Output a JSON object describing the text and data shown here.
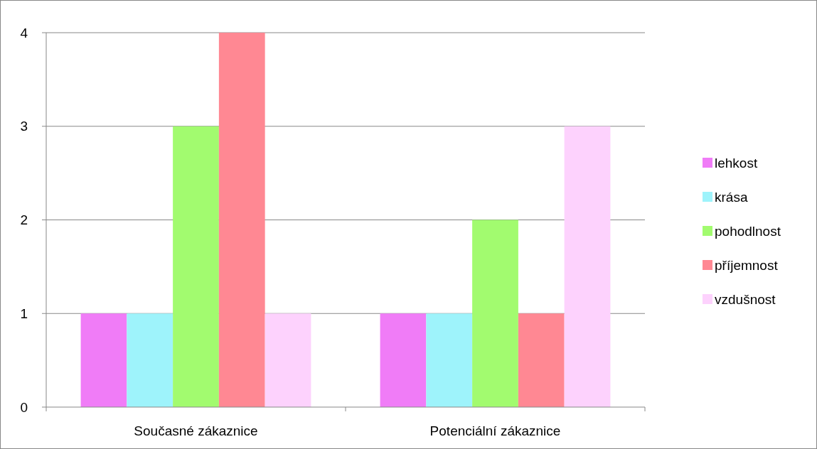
{
  "chart_data": {
    "type": "bar",
    "categories": [
      "Současné zákaznice",
      "Potenciální zákaznice"
    ],
    "series": [
      {
        "name": "lehkost",
        "color": "#f07cf7",
        "values": [
          1,
          1
        ]
      },
      {
        "name": "krása",
        "color": "#9ef3fb",
        "values": [
          1,
          1
        ]
      },
      {
        "name": "pohodlnost",
        "color": "#a2fb6f",
        "values": [
          3,
          2
        ]
      },
      {
        "name": "příjemnost",
        "color": "#ff8893",
        "values": [
          4,
          1
        ]
      },
      {
        "name": "vzdušnost",
        "color": "#fdd2fd",
        "values": [
          1,
          3
        ]
      }
    ],
    "ylim": [
      0,
      4
    ],
    "yticks": [
      0,
      1,
      2,
      3,
      4
    ],
    "grid": "y",
    "legend": "right"
  }
}
